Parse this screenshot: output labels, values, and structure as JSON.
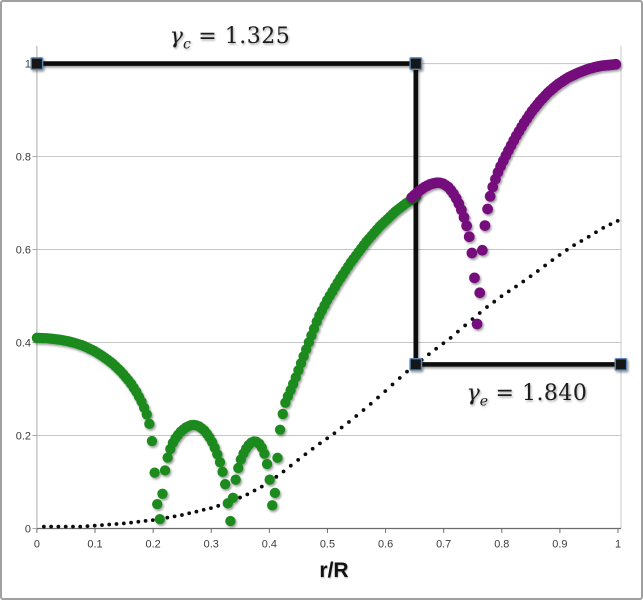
{
  "style": {
    "background": "#ffffff",
    "frame_border_color": "#9f9f9f",
    "grid_color": "#c5c5c5",
    "axis_color": "#a8a8a8",
    "axis_dark_color": "#6b6b6b",
    "plot_border_color": "#c9c9c9",
    "tick_label_color": "#3a3a3a",
    "green_series_color": "#1a8a1e",
    "purple_series_color": "#740d7c",
    "dotted_series_color": "#0d0d0d",
    "step_line_color": "#0b0b0b",
    "marker_stroke_color": "#5b87b8"
  },
  "chart_data": {
    "type": "scatter",
    "title": "",
    "xlabel": "r/R",
    "ylabel": "",
    "xlim": [
      0,
      1
    ],
    "ylim": [
      0,
      1
    ],
    "grid": "horizontal",
    "legend": "none",
    "x_ticks": {
      "values": [
        0,
        0.1,
        0.2,
        0.3,
        0.4,
        0.5,
        0.6,
        0.7,
        0.8,
        0.9,
        1
      ],
      "labels": [
        "0",
        "0.1",
        "0.2",
        "0.3",
        "0.4",
        "0.5",
        "0.6",
        "0.7",
        "0.8",
        "0.9",
        "1"
      ]
    },
    "y_ticks": {
      "values": [
        0,
        0.2,
        0.4,
        0.6,
        0.8,
        1
      ],
      "labels": [
        "0",
        "0.2",
        "0.4",
        "0.6",
        "0.8",
        "1"
      ]
    },
    "series": [
      {
        "name": "dotted-reference-curve",
        "color": "#0d0d0d",
        "marker_radius": 1.9,
        "sample_step": 0.0125,
        "shadow": false,
        "points": [
          [
            0.012,
            0.001
          ],
          [
            0.05,
            0.002
          ],
          [
            0.1,
            0.006
          ],
          [
            0.15,
            0.011
          ],
          [
            0.2,
            0.018
          ],
          [
            0.25,
            0.029
          ],
          [
            0.3,
            0.044
          ],
          [
            0.33,
            0.056
          ],
          [
            0.36,
            0.072
          ],
          [
            0.39,
            0.092
          ],
          [
            0.42,
            0.118
          ],
          [
            0.45,
            0.148
          ],
          [
            0.48,
            0.177
          ],
          [
            0.51,
            0.203
          ],
          [
            0.54,
            0.232
          ],
          [
            0.57,
            0.263
          ],
          [
            0.6,
            0.296
          ],
          [
            0.63,
            0.33
          ],
          [
            0.652,
            0.353
          ],
          [
            0.68,
            0.38
          ],
          [
            0.71,
            0.408
          ],
          [
            0.74,
            0.44
          ],
          [
            0.77,
            0.472
          ],
          [
            0.8,
            0.5
          ],
          [
            0.83,
            0.525
          ],
          [
            0.86,
            0.552
          ],
          [
            0.89,
            0.58
          ],
          [
            0.92,
            0.606
          ],
          [
            0.95,
            0.628
          ],
          [
            0.975,
            0.647
          ],
          [
            1.0,
            0.662
          ]
        ]
      },
      {
        "name": "green-inner-curve",
        "color": "#1a8a1e",
        "marker_radius": 5.2,
        "sample_step": 0.0045,
        "shadow": true,
        "points": [
          [
            0.0,
            0.41
          ],
          [
            0.02,
            0.409
          ],
          [
            0.04,
            0.406
          ],
          [
            0.06,
            0.401
          ],
          [
            0.08,
            0.393
          ],
          [
            0.1,
            0.381
          ],
          [
            0.115,
            0.369
          ],
          [
            0.13,
            0.355
          ],
          [
            0.145,
            0.337
          ],
          [
            0.16,
            0.315
          ],
          [
            0.172,
            0.292
          ],
          [
            0.182,
            0.268
          ],
          [
            0.19,
            0.242
          ],
          [
            0.196,
            0.213
          ],
          [
            0.2,
            0.163
          ],
          [
            0.2025,
            0.12
          ],
          [
            0.205,
            0.078
          ],
          [
            0.2075,
            0.046
          ],
          [
            0.21,
            0.014
          ],
          [
            0.2125,
            0.024
          ],
          [
            0.215,
            0.062
          ],
          [
            0.218,
            0.1
          ],
          [
            0.221,
            0.13
          ],
          [
            0.226,
            0.158
          ],
          [
            0.232,
            0.18
          ],
          [
            0.24,
            0.197
          ],
          [
            0.248,
            0.209
          ],
          [
            0.256,
            0.217
          ],
          [
            0.264,
            0.222
          ],
          [
            0.272,
            0.223
          ],
          [
            0.28,
            0.219
          ],
          [
            0.288,
            0.211
          ],
          [
            0.296,
            0.198
          ],
          [
            0.304,
            0.18
          ],
          [
            0.312,
            0.155
          ],
          [
            0.318,
            0.13
          ],
          [
            0.323,
            0.103
          ],
          [
            0.327,
            0.072
          ],
          [
            0.33,
            0.036
          ],
          [
            0.332,
            0.006
          ],
          [
            0.335,
            0.036
          ],
          [
            0.338,
            0.072
          ],
          [
            0.342,
            0.105
          ],
          [
            0.347,
            0.133
          ],
          [
            0.352,
            0.152
          ],
          [
            0.358,
            0.168
          ],
          [
            0.364,
            0.179
          ],
          [
            0.37,
            0.186
          ],
          [
            0.376,
            0.188
          ],
          [
            0.382,
            0.183
          ],
          [
            0.388,
            0.172
          ],
          [
            0.393,
            0.156
          ],
          [
            0.397,
            0.133
          ],
          [
            0.401,
            0.101
          ],
          [
            0.404,
            0.063
          ],
          [
            0.4065,
            0.03
          ],
          [
            0.409,
            0.068
          ],
          [
            0.4115,
            0.11
          ],
          [
            0.414,
            0.152
          ],
          [
            0.4165,
            0.19
          ],
          [
            0.419,
            0.218
          ],
          [
            0.4235,
            0.25
          ],
          [
            0.428,
            0.273
          ],
          [
            0.436,
            0.296
          ],
          [
            0.444,
            0.32
          ],
          [
            0.455,
            0.357
          ],
          [
            0.47,
            0.407
          ],
          [
            0.484,
            0.453
          ],
          [
            0.5,
            0.492
          ],
          [
            0.519,
            0.532
          ],
          [
            0.54,
            0.572
          ],
          [
            0.565,
            0.614
          ],
          [
            0.59,
            0.65
          ],
          [
            0.617,
            0.682
          ],
          [
            0.637,
            0.701
          ],
          [
            0.655,
            0.716
          ]
        ]
      },
      {
        "name": "purple-outer-curve",
        "color": "#740d7c",
        "marker_radius": 5.4,
        "sample_step": 0.0045,
        "shadow": true,
        "points": [
          [
            0.645,
            0.712
          ],
          [
            0.652,
            0.72
          ],
          [
            0.66,
            0.728
          ],
          [
            0.668,
            0.735
          ],
          [
            0.676,
            0.74
          ],
          [
            0.684,
            0.743
          ],
          [
            0.692,
            0.744
          ],
          [
            0.7,
            0.741
          ],
          [
            0.708,
            0.734
          ],
          [
            0.716,
            0.722
          ],
          [
            0.724,
            0.705
          ],
          [
            0.731,
            0.684
          ],
          [
            0.737,
            0.662
          ],
          [
            0.742,
            0.64
          ],
          [
            0.746,
            0.615
          ],
          [
            0.749,
            0.588
          ],
          [
            0.752,
            0.555
          ],
          [
            0.7545,
            0.515
          ],
          [
            0.7565,
            0.468
          ],
          [
            0.7585,
            0.412
          ],
          [
            0.7605,
            0.468
          ],
          [
            0.7625,
            0.52
          ],
          [
            0.7645,
            0.565
          ],
          [
            0.767,
            0.607
          ],
          [
            0.77,
            0.643
          ],
          [
            0.7735,
            0.673
          ],
          [
            0.777,
            0.698
          ],
          [
            0.781,
            0.72
          ],
          [
            0.786,
            0.741
          ],
          [
            0.792,
            0.762
          ],
          [
            0.799,
            0.782
          ],
          [
            0.807,
            0.802
          ],
          [
            0.816,
            0.824
          ],
          [
            0.826,
            0.847
          ],
          [
            0.838,
            0.872
          ],
          [
            0.851,
            0.896
          ],
          [
            0.865,
            0.918
          ],
          [
            0.88,
            0.938
          ],
          [
            0.896,
            0.955
          ],
          [
            0.913,
            0.969
          ],
          [
            0.931,
            0.98
          ],
          [
            0.95,
            0.989
          ],
          [
            0.97,
            0.995
          ],
          [
            1.0,
            0.999
          ]
        ]
      }
    ],
    "step_line": {
      "color": "#0b0b0b",
      "width": 4.6,
      "points": [
        [
          0,
          1
        ],
        [
          0.652,
          1
        ],
        [
          0.652,
          0.353
        ],
        [
          1.005,
          0.353
        ]
      ],
      "marker_size": 11.5,
      "marker_fill": "#161616",
      "marker_stroke": "#5b87b8"
    },
    "labels": {
      "gamma_c": {
        "symbol": "γ",
        "subscript": "c",
        "value": " = 1.325"
      },
      "gamma_e": {
        "symbol": "γ",
        "subscript": "e",
        "value": " = 1.840"
      }
    }
  }
}
